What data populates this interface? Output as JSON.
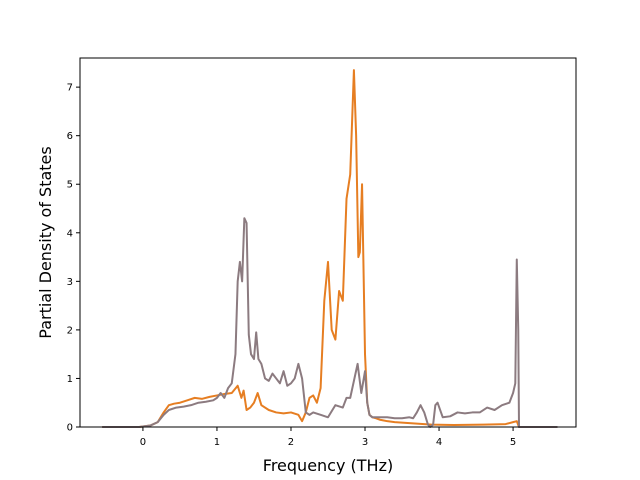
{
  "chart_data": {
    "type": "line",
    "title": "",
    "xlabel": "Frequency (THz)",
    "ylabel": "Partial Density of States",
    "xlim": [
      -0.85,
      5.85
    ],
    "ylim": [
      0,
      7.6
    ],
    "xticks": [
      0,
      1,
      2,
      3,
      4,
      5
    ],
    "yticks": [
      0,
      1,
      2,
      3,
      4,
      5,
      6,
      7
    ],
    "grid": false,
    "legend": "none",
    "series": [
      {
        "color": "#e67e22",
        "x": [
          -0.55,
          -0.05,
          0.1,
          0.2,
          0.28,
          0.35,
          0.42,
          0.5,
          0.6,
          0.7,
          0.8,
          0.9,
          1.0,
          1.1,
          1.2,
          1.28,
          1.33,
          1.36,
          1.4,
          1.45,
          1.5,
          1.55,
          1.6,
          1.7,
          1.8,
          1.9,
          2.0,
          2.1,
          2.15,
          2.2,
          2.25,
          2.3,
          2.35,
          2.4,
          2.45,
          2.5,
          2.55,
          2.6,
          2.65,
          2.7,
          2.75,
          2.8,
          2.85,
          2.88,
          2.91,
          2.93,
          2.96,
          3.0,
          3.03,
          3.06,
          3.1,
          3.15,
          3.2,
          3.3,
          3.4,
          3.6,
          3.9,
          4.2,
          4.6,
          4.9,
          5.0,
          5.05,
          5.08,
          5.6
        ],
        "values": [
          0,
          0,
          0.03,
          0.1,
          0.3,
          0.45,
          0.48,
          0.5,
          0.55,
          0.6,
          0.58,
          0.62,
          0.65,
          0.68,
          0.7,
          0.85,
          0.6,
          0.75,
          0.35,
          0.4,
          0.5,
          0.7,
          0.45,
          0.35,
          0.3,
          0.28,
          0.3,
          0.25,
          0.12,
          0.3,
          0.6,
          0.65,
          0.5,
          0.8,
          2.6,
          3.4,
          2.0,
          1.8,
          2.8,
          2.6,
          4.7,
          5.2,
          7.35,
          6.0,
          3.5,
          3.6,
          5.0,
          1.5,
          0.5,
          0.25,
          0.2,
          0.18,
          0.15,
          0.12,
          0.1,
          0.08,
          0.05,
          0.04,
          0.05,
          0.06,
          0.1,
          0.12,
          0,
          0
        ]
      },
      {
        "color": "#8c7b80",
        "x": [
          -0.55,
          -0.05,
          0.1,
          0.2,
          0.28,
          0.35,
          0.45,
          0.55,
          0.65,
          0.75,
          0.85,
          0.95,
          1.0,
          1.05,
          1.1,
          1.15,
          1.2,
          1.25,
          1.28,
          1.31,
          1.34,
          1.37,
          1.4,
          1.43,
          1.46,
          1.5,
          1.53,
          1.56,
          1.6,
          1.65,
          1.7,
          1.75,
          1.8,
          1.85,
          1.9,
          1.95,
          2.0,
          2.05,
          2.1,
          2.15,
          2.2,
          2.25,
          2.3,
          2.4,
          2.5,
          2.6,
          2.7,
          2.75,
          2.8,
          2.85,
          2.9,
          2.95,
          3.0,
          3.03,
          3.06,
          3.1,
          3.2,
          3.3,
          3.4,
          3.5,
          3.6,
          3.65,
          3.7,
          3.75,
          3.8,
          3.85,
          3.88,
          3.92,
          3.95,
          3.98,
          4.05,
          4.15,
          4.25,
          4.35,
          4.45,
          4.55,
          4.65,
          4.75,
          4.85,
          4.95,
          5.0,
          5.03,
          5.05,
          5.07,
          5.08,
          5.6
        ],
        "values": [
          0,
          0,
          0.03,
          0.1,
          0.25,
          0.35,
          0.4,
          0.42,
          0.45,
          0.5,
          0.52,
          0.55,
          0.6,
          0.7,
          0.6,
          0.8,
          0.9,
          1.5,
          3.0,
          3.4,
          3.0,
          4.3,
          4.2,
          1.9,
          1.5,
          1.4,
          1.95,
          1.4,
          1.3,
          1.0,
          0.95,
          1.1,
          1.0,
          0.9,
          1.15,
          0.85,
          0.9,
          1.0,
          1.3,
          1.0,
          0.3,
          0.25,
          0.3,
          0.25,
          0.2,
          0.45,
          0.4,
          0.6,
          0.6,
          0.95,
          1.3,
          0.7,
          1.15,
          0.5,
          0.25,
          0.2,
          0.2,
          0.2,
          0.18,
          0.18,
          0.2,
          0.18,
          0.3,
          0.45,
          0.3,
          0.05,
          0.0,
          0.05,
          0.45,
          0.5,
          0.2,
          0.22,
          0.3,
          0.28,
          0.3,
          0.3,
          0.4,
          0.35,
          0.45,
          0.5,
          0.7,
          0.9,
          3.45,
          2.0,
          0,
          0
        ]
      }
    ]
  }
}
